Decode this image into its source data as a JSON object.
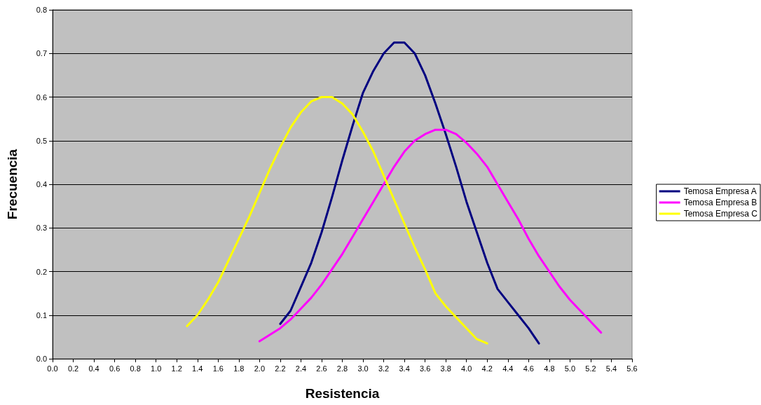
{
  "chart_data": {
    "type": "line",
    "xlabel": "Resistencia",
    "ylabel": "Frecuencia",
    "legend": "right",
    "grid": "y",
    "marker": "none",
    "line_style": "solid",
    "xlim": [
      0,
      5.6
    ],
    "ylim": [
      0,
      0.8
    ],
    "xticks": [
      {
        "value": 0,
        "label": "0.0"
      },
      {
        "value": 0.2,
        "label": "0.2"
      },
      {
        "value": 0.4,
        "label": "0.4"
      },
      {
        "value": 0.6,
        "label": "0.6"
      },
      {
        "value": 0.8,
        "label": "0.8"
      },
      {
        "value": 1,
        "label": "1.0"
      },
      {
        "value": 1.2,
        "label": "1.2"
      },
      {
        "value": 1.4,
        "label": "1.4"
      },
      {
        "value": 1.6,
        "label": "1.6"
      },
      {
        "value": 1.8,
        "label": "1.8"
      },
      {
        "value": 2,
        "label": "2.0"
      },
      {
        "value": 2.2,
        "label": "2.2"
      },
      {
        "value": 2.4,
        "label": "2.4"
      },
      {
        "value": 2.6,
        "label": "2.6"
      },
      {
        "value": 2.8,
        "label": "2.8"
      },
      {
        "value": 3,
        "label": "3.0"
      },
      {
        "value": 3.2,
        "label": "3.2"
      },
      {
        "value": 3.4,
        "label": "3.4"
      },
      {
        "value": 3.6,
        "label": "3.6"
      },
      {
        "value": 3.8,
        "label": "3.8"
      },
      {
        "value": 4,
        "label": "4.0"
      },
      {
        "value": 4.2,
        "label": "4.2"
      },
      {
        "value": 4.4,
        "label": "4.4"
      },
      {
        "value": 4.6,
        "label": "4.6"
      },
      {
        "value": 4.8,
        "label": "4.8"
      },
      {
        "value": 5,
        "label": "5.0"
      },
      {
        "value": 5.2,
        "label": "5.2"
      },
      {
        "value": 5.4,
        "label": "5.4"
      },
      {
        "value": 5.6,
        "label": "5.6"
      }
    ],
    "yticks": [
      {
        "value": 0,
        "label": "0.0"
      },
      0.1,
      0.2,
      0.3,
      0.4,
      0.5,
      0.6,
      0.7,
      0.8
    ],
    "series": [
      {
        "name": "Temosa Empresa A",
        "color": "#000080",
        "x": [
          2.2,
          2.3,
          2.4,
          2.5,
          2.6,
          2.7,
          2.8,
          2.9,
          3.0,
          3.1,
          3.2,
          3.3,
          3.4,
          3.5,
          3.6,
          3.7,
          3.8,
          3.9,
          4.0,
          4.1,
          4.2,
          4.3,
          4.4,
          4.5,
          4.6,
          4.7
        ],
        "values": [
          0.08,
          0.11,
          0.165,
          0.22,
          0.29,
          0.37,
          0.455,
          0.535,
          0.61,
          0.66,
          0.7,
          0.725,
          0.725,
          0.7,
          0.65,
          0.585,
          0.515,
          0.44,
          0.36,
          0.29,
          0.22,
          0.16,
          0.13,
          0.1,
          0.07,
          0.035
        ]
      },
      {
        "name": "Temosa Empresa B",
        "color": "#ff00ff",
        "x": [
          2.0,
          2.1,
          2.2,
          2.3,
          2.4,
          2.5,
          2.6,
          2.7,
          2.8,
          2.9,
          3.0,
          3.1,
          3.2,
          3.3,
          3.4,
          3.5,
          3.6,
          3.7,
          3.8,
          3.9,
          4.0,
          4.1,
          4.2,
          4.3,
          4.4,
          4.5,
          4.6,
          4.7,
          4.8,
          4.9,
          5.0,
          5.1,
          5.2,
          5.3
        ],
        "values": [
          0.04,
          0.055,
          0.07,
          0.09,
          0.115,
          0.14,
          0.17,
          0.205,
          0.24,
          0.28,
          0.32,
          0.36,
          0.4,
          0.44,
          0.475,
          0.5,
          0.515,
          0.525,
          0.525,
          0.515,
          0.495,
          0.47,
          0.44,
          0.4,
          0.36,
          0.32,
          0.275,
          0.235,
          0.2,
          0.165,
          0.135,
          0.11,
          0.085,
          0.06
        ]
      },
      {
        "name": "Temosa Empresa C",
        "color": "#ffff00",
        "x": [
          1.3,
          1.4,
          1.5,
          1.6,
          1.7,
          1.8,
          1.9,
          2.0,
          2.1,
          2.2,
          2.3,
          2.4,
          2.5,
          2.6,
          2.7,
          2.8,
          2.9,
          3.0,
          3.1,
          3.2,
          3.3,
          3.4,
          3.5,
          3.6,
          3.7,
          3.8,
          3.9,
          4.0,
          4.1,
          4.2
        ],
        "values": [
          0.075,
          0.1,
          0.135,
          0.175,
          0.225,
          0.275,
          0.325,
          0.38,
          0.435,
          0.485,
          0.53,
          0.565,
          0.59,
          0.6,
          0.6,
          0.585,
          0.56,
          0.52,
          0.475,
          0.42,
          0.365,
          0.31,
          0.255,
          0.205,
          0.15,
          0.12,
          0.095,
          0.07,
          0.045,
          0.035
        ]
      }
    ]
  }
}
